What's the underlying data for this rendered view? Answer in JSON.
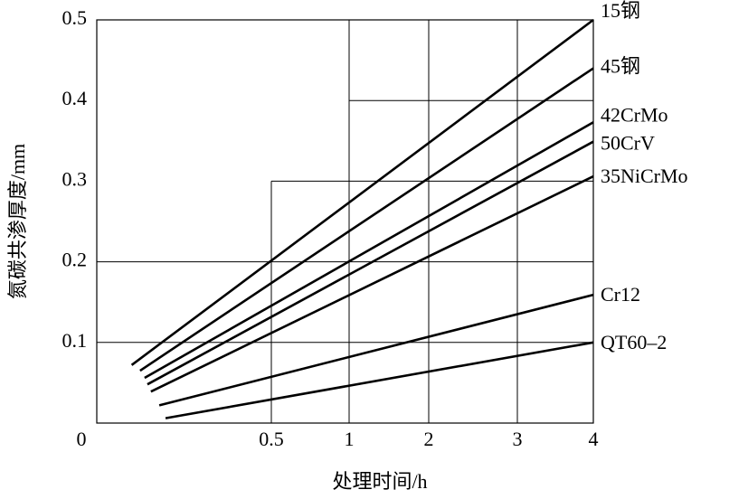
{
  "chart_data": {
    "type": "line",
    "xlabel": "处理时间/h",
    "ylabel": "氮碳共渗厚度/mm",
    "xlim": [
      0,
      4
    ],
    "xticks": [
      0,
      0.5,
      1,
      2,
      3,
      4
    ],
    "ylim": [
      0,
      0.5
    ],
    "yticks": [
      0.1,
      0.2,
      0.3,
      0.4,
      0.5
    ],
    "grid": true,
    "series": [
      {
        "name": "15钢",
        "color": "#000000",
        "x": [
          0.1,
          4
        ],
        "values": [
          0.072,
          0.5
        ]
      },
      {
        "name": "45钢",
        "color": "#000000",
        "x": [
          0.124,
          4
        ],
        "values": [
          0.065,
          0.44
        ]
      },
      {
        "name": "42CrMo",
        "color": "#000000",
        "x": [
          0.137,
          4
        ],
        "values": [
          0.056,
          0.373
        ]
      },
      {
        "name": "50CrV",
        "color": "#000000",
        "x": [
          0.145,
          4
        ],
        "values": [
          0.048,
          0.349
        ]
      },
      {
        "name": "35NiCrMo",
        "color": "#000000",
        "x": [
          0.155,
          4
        ],
        "values": [
          0.039,
          0.306
        ]
      },
      {
        "name": "Cr12",
        "color": "#000000",
        "x": [
          0.179,
          4
        ],
        "values": [
          0.022,
          0.159
        ]
      },
      {
        "name": "QT60–2",
        "color": "#000000",
        "x": [
          0.197,
          4
        ],
        "values": [
          0.006,
          0.1
        ]
      }
    ]
  }
}
